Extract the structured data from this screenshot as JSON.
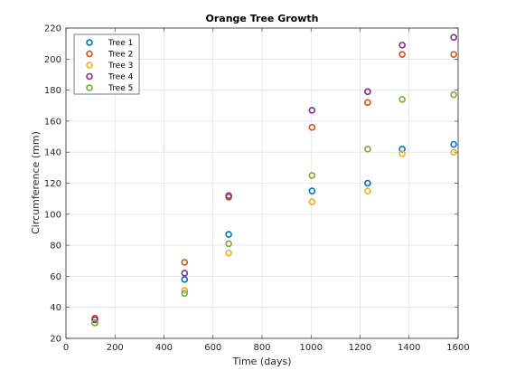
{
  "chart_data": {
    "type": "scatter",
    "title": "Orange Tree Growth",
    "xlabel": "Time (days)",
    "ylabel": "Circumference (mm)",
    "xlim": [
      0,
      1600
    ],
    "ylim": [
      20,
      220
    ],
    "xticks": [
      0,
      200,
      400,
      600,
      800,
      1000,
      1200,
      1400,
      1600
    ],
    "yticks": [
      20,
      40,
      60,
      80,
      100,
      120,
      140,
      160,
      180,
      200,
      220
    ],
    "grid": true,
    "legend_position": "top-left",
    "marker": "circle",
    "x": [
      118,
      484,
      664,
      1004,
      1231,
      1372,
      1582
    ],
    "series": [
      {
        "name": "Tree 1",
        "color": "#0072BD",
        "values": [
          30,
          58,
          87,
          115,
          120,
          142,
          145
        ]
      },
      {
        "name": "Tree 2",
        "color": "#D95319",
        "values": [
          33,
          69,
          111,
          156,
          172,
          203,
          203
        ]
      },
      {
        "name": "Tree 3",
        "color": "#EDB120",
        "values": [
          30,
          51,
          75,
          108,
          115,
          139,
          140
        ]
      },
      {
        "name": "Tree 4",
        "color": "#7E2F8E",
        "values": [
          32,
          62,
          112,
          167,
          179,
          209,
          214
        ]
      },
      {
        "name": "Tree 5",
        "color": "#77AC30",
        "values": [
          30,
          49,
          81,
          125,
          142,
          174,
          177
        ]
      }
    ]
  }
}
